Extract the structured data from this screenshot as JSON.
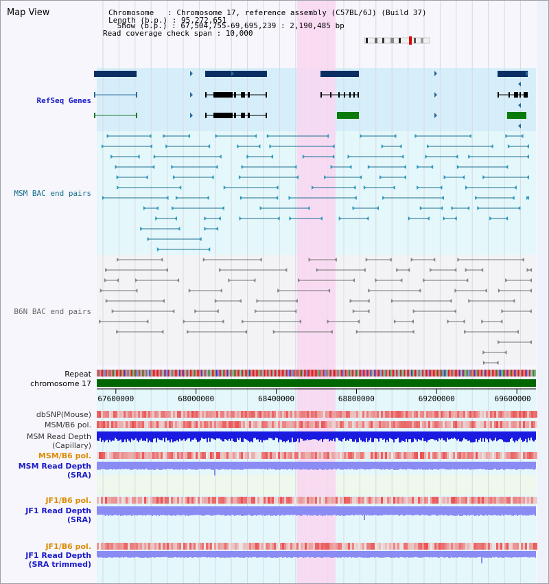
{
  "title": "Map View",
  "header": {
    "chromosome": "Chromosome   : Chromosome 17, reference assembly (C57BL/6J) (Build 37)",
    "length": "Length (b.p.) : 95,272,651",
    "show": " Show (b.p.) : 67,504,755-69,695,239 : 2,190,485 bp",
    "span": "Read coverage check span : 10,000"
  },
  "tracks": {
    "refseq": "RefSeq Genes",
    "msm_bac": "MSM BAC end pairs",
    "b6n_bac": "B6N BAC end pairs",
    "repeat": "Repeat",
    "chromosome": "chromosome 17",
    "dbsnp": "dbSNP(Mouse)",
    "msm_b6_pol": "MSM/B6 pol.",
    "msm_depth_cap_1": "MSM Read Depth",
    "msm_depth_cap_2": "(Capillary)",
    "msm_b6_pol_sra": "MSM/B6 pol.",
    "msm_depth_sra_1": "MSM Read Depth",
    "msm_depth_sra_2": "(SRA)",
    "jf1_pol_1": "JF1/B6 pol.",
    "jf1_depth_1": "JF1 Read Depth",
    "jf1_depth_1b": "(SRA)",
    "jf1_pol_2": "JF1/B6 pol.",
    "jf1_depth_2": "JF1 Read Depth",
    "jf1_depth_2b": "(SRA trimmed)"
  },
  "axis": {
    "ticks": [
      "67600000",
      "68000000",
      "68400000",
      "68800000",
      "69200000",
      "69600000"
    ],
    "tick_values": [
      67600000,
      68000000,
      68400000,
      68800000,
      69200000,
      69600000
    ],
    "range": [
      67504755,
      69695239
    ]
  },
  "highlight": {
    "start": 68510000,
    "end": 68700000,
    "color": "#f9d6f0"
  },
  "colors": {
    "refseq_bg": "#d6eefa",
    "msm_bg": "#e4f7fa",
    "b6n_bg": "#f3f3f6",
    "gene": "#0c2f63",
    "msm_pair": "#1c6d8e",
    "b6n_pair": "#707070",
    "chromosome_bar": "#006600",
    "snp": "#e8302a",
    "depth_cap": "#1a1ae0",
    "depth_sra": "#8a8cf4",
    "label_blue": "#1a1ac8",
    "label_orange": "#dd8a00",
    "label_teal": "#0d6b86"
  }
}
